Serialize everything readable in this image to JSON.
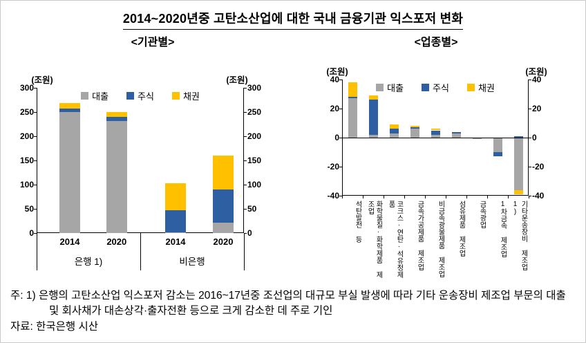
{
  "title": "2014~2020년중 고탄소산업에 대한 국내 금융기관 익스포저 변화",
  "colors": {
    "loan_gray": "#a6a6a6",
    "stock_blue": "#2e5fa3",
    "bond_yellow": "#ffc000"
  },
  "chart_data": [
    {
      "type": "bar",
      "stacked": true,
      "title": "<기관별>",
      "unit": "(조원)",
      "categories": [
        "2014",
        "2020",
        "2014",
        "2020"
      ],
      "group_labels": [
        "은행 1)",
        "비은행"
      ],
      "ylim": [
        0,
        300
      ],
      "yticks": [
        0,
        50,
        100,
        150,
        200,
        250,
        300
      ],
      "legend_position": "top",
      "grid": false,
      "series": [
        {
          "name": "대출",
          "color": "#a6a6a6",
          "values": [
            250,
            232,
            2,
            21
          ]
        },
        {
          "name": "주식",
          "color": "#2e5fa3",
          "values": [
            7,
            8,
            45,
            69
          ]
        },
        {
          "name": "채권",
          "color": "#ffc000",
          "values": [
            12,
            10,
            56,
            70
          ]
        }
      ]
    },
    {
      "type": "bar",
      "stacked": true,
      "title": "<업종별>",
      "unit": "(조원)",
      "categories": [
        "석탄발전 등",
        "화학물질·화학제품 제조업",
        "코크스·연탄·석유정제품",
        "금속가공제품 제조업",
        "비금속광물제품 제조업",
        "섬유제품 제조업",
        "금속광업",
        "1차금속 제조업",
        "기타운송장비 제조업1)"
      ],
      "ylim": [
        -40,
        40
      ],
      "yticks": [
        -40,
        -20,
        0,
        20,
        40
      ],
      "legend_position": "top",
      "grid": false,
      "series": [
        {
          "name": "대출",
          "color": "#a6a6a6",
          "values": [
            27,
            2,
            3,
            6,
            2,
            3,
            -1,
            -10,
            -36
          ]
        },
        {
          "name": "주식",
          "color": "#2e5fa3",
          "values": [
            1,
            24,
            3,
            1,
            3,
            1,
            0,
            -3,
            1
          ]
        },
        {
          "name": "채권",
          "color": "#ffc000",
          "values": [
            10,
            3,
            3,
            1,
            1,
            0,
            0,
            0,
            -3
          ]
        }
      ]
    }
  ],
  "notes": {
    "footnote": "주: 1) 은행의 고탄소산업 익스포저 감소는 2016~17년중 조선업의 대규모 부실 발생에 따라 기타 운송장비 제조업 부문의 대출 및 회사채가 대손상각·출자전환 등으로 크게 감소한 데 주로 기인",
    "source": "자료: 한국은행 시산"
  }
}
